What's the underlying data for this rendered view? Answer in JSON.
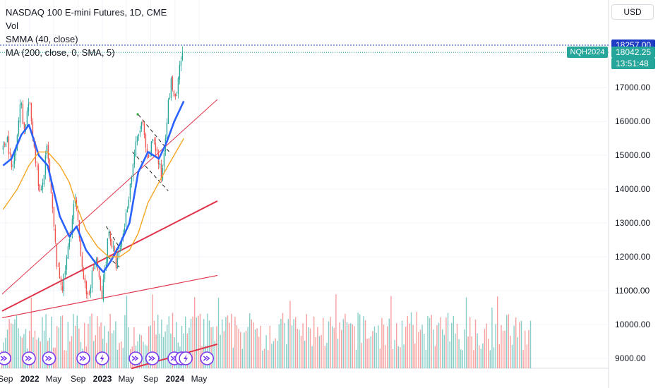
{
  "legend": {
    "title": "NASDAQ 100 E-mini Futures, 1D, CME",
    "vol": "Vol",
    "smma": "SMMA (40, close)",
    "ma": "MA (200, close, 0, SMA, 5)"
  },
  "price_scale": {
    "currency": "USD",
    "level_label": "18257.00",
    "symbol_tag": "NQH2024",
    "last_price": "18042.25",
    "countdown": "13:51:48"
  },
  "colors": {
    "up": "#26a69a",
    "down": "#ef5350",
    "smma": "#2962ff",
    "ma": "#f5a623",
    "trendline": "#e0344b",
    "level": "#1f3cc4",
    "event": "#7c3aed"
  },
  "chart_data": {
    "type": "line",
    "title": "NASDAQ 100 E-mini Futures, 1D, CME",
    "x_ticks": [
      "Sep",
      "2022",
      "May",
      "Sep",
      "2023",
      "May",
      "Sep",
      "2024",
      "May"
    ],
    "y_ticks": [
      9000,
      10000,
      11000,
      12000,
      13000,
      14000,
      15000,
      16000,
      17000
    ],
    "ylim": [
      8700,
      18950
    ],
    "horizontal_level": 18257,
    "last_price": 18042.25,
    "price_path": [
      {
        "date": "2021-08-20",
        "price": 15150
      },
      {
        "date": "2021-09-07",
        "price": 15650
      },
      {
        "date": "2021-10-04",
        "price": 14500
      },
      {
        "date": "2021-11-19",
        "price": 16650
      },
      {
        "date": "2021-12-03",
        "price": 15700
      },
      {
        "date": "2021-12-28",
        "price": 16600
      },
      {
        "date": "2022-02-24",
        "price": 13700
      },
      {
        "date": "2022-03-29",
        "price": 15200
      },
      {
        "date": "2022-05-20",
        "price": 11600
      },
      {
        "date": "2022-06-16",
        "price": 11100
      },
      {
        "date": "2022-08-16",
        "price": 13700
      },
      {
        "date": "2022-10-13",
        "price": 10700
      },
      {
        "date": "2022-11-30",
        "price": 12000
      },
      {
        "date": "2022-12-28",
        "price": 10700
      },
      {
        "date": "2023-02-02",
        "price": 12800
      },
      {
        "date": "2023-03-13",
        "price": 11700
      },
      {
        "date": "2023-04-24",
        "price": 13000
      },
      {
        "date": "2023-06-15",
        "price": 15200
      },
      {
        "date": "2023-07-19",
        "price": 16000
      },
      {
        "date": "2023-08-18",
        "price": 14700
      },
      {
        "date": "2023-09-14",
        "price": 15600
      },
      {
        "date": "2023-10-26",
        "price": 14300
      },
      {
        "date": "2023-11-20",
        "price": 16100
      },
      {
        "date": "2023-12-14",
        "price": 17200
      },
      {
        "date": "2024-01-05",
        "price": 16500
      },
      {
        "date": "2024-01-30",
        "price": 17800
      },
      {
        "date": "2024-02-14",
        "price": 18040
      }
    ],
    "series": [
      {
        "name": "SMMA (40, close)",
        "points": [
          {
            "date": "2021-08-20",
            "value": 14700
          },
          {
            "date": "2021-10-01",
            "value": 14900
          },
          {
            "date": "2021-11-19",
            "value": 15600
          },
          {
            "date": "2021-12-28",
            "value": 15900
          },
          {
            "date": "2022-02-15",
            "value": 15000
          },
          {
            "date": "2022-04-01",
            "value": 14700
          },
          {
            "date": "2022-06-01",
            "value": 13200
          },
          {
            "date": "2022-07-19",
            "value": 12600
          },
          {
            "date": "2022-08-24",
            "value": 12900
          },
          {
            "date": "2022-10-11",
            "value": 12200
          },
          {
            "date": "2022-11-30",
            "value": 11800
          },
          {
            "date": "2023-01-06",
            "value": 11550
          },
          {
            "date": "2023-02-15",
            "value": 11900
          },
          {
            "date": "2023-04-01",
            "value": 12400
          },
          {
            "date": "2023-05-17",
            "value": 13000
          },
          {
            "date": "2023-06-30",
            "value": 14500
          },
          {
            "date": "2023-08-18",
            "value": 15100
          },
          {
            "date": "2023-10-12",
            "value": 14900
          },
          {
            "date": "2023-11-21",
            "value": 15400
          },
          {
            "date": "2023-12-28",
            "value": 16000
          },
          {
            "date": "2024-02-14",
            "value": 16600
          }
        ]
      },
      {
        "name": "MA (200, close, 0, SMA, 5)",
        "points": [
          {
            "date": "2021-08-20",
            "value": 13400
          },
          {
            "date": "2021-10-30",
            "value": 14000
          },
          {
            "date": "2021-12-28",
            "value": 14700
          },
          {
            "date": "2022-02-15",
            "value": 15100
          },
          {
            "date": "2022-04-01",
            "value": 15100
          },
          {
            "date": "2022-06-01",
            "value": 14700
          },
          {
            "date": "2022-07-19",
            "value": 14200
          },
          {
            "date": "2022-09-01",
            "value": 13400
          },
          {
            "date": "2022-10-11",
            "value": 12800
          },
          {
            "date": "2022-12-07",
            "value": 12300
          },
          {
            "date": "2023-02-02",
            "value": 12000
          },
          {
            "date": "2023-03-29",
            "value": 12000
          },
          {
            "date": "2023-05-17",
            "value": 12200
          },
          {
            "date": "2023-06-30",
            "value": 12700
          },
          {
            "date": "2023-08-18",
            "value": 13600
          },
          {
            "date": "2023-10-12",
            "value": 14200
          },
          {
            "date": "2023-11-28",
            "value": 14700
          },
          {
            "date": "2024-01-06",
            "value": 15100
          },
          {
            "date": "2024-02-14",
            "value": 15500
          }
        ]
      }
    ],
    "trendlines": [
      {
        "from": {
          "date": "2021-08-15",
          "value": 10900
        },
        "to": {
          "date": "2024-08-01",
          "value": 16650
        },
        "style": "thin"
      },
      {
        "from": {
          "date": "2021-08-15",
          "value": 10400
        },
        "to": {
          "date": "2024-08-01",
          "value": 13650
        },
        "style": "bold"
      },
      {
        "from": {
          "date": "2021-08-15",
          "value": 10200
        },
        "to": {
          "date": "2024-08-01",
          "value": 11450
        },
        "style": "medium"
      },
      {
        "from": {
          "date": "2023-05-27",
          "value": 8700
        },
        "to": {
          "date": "2024-08-01",
          "value": 9420
        },
        "style": "bold"
      },
      {
        "from": {
          "date": "2023-07-01",
          "value": 16200
        },
        "to": {
          "date": "2023-12-10",
          "value": 15050
        },
        "style": "dashed"
      },
      {
        "from": {
          "date": "2023-06-01",
          "value": 15100
        },
        "to": {
          "date": "2023-11-28",
          "value": 13950
        },
        "style": "dashed"
      },
      {
        "from": {
          "date": "2023-01-20",
          "value": 12900
        },
        "to": {
          "date": "2023-03-31",
          "value": 12250
        },
        "style": "dashed"
      },
      {
        "from": {
          "date": "2023-01-29",
          "value": 12000
        },
        "to": {
          "date": "2023-03-27",
          "value": 11700
        },
        "style": "dashed"
      }
    ],
    "event_markers": [
      {
        "date": "2021-08-26",
        "kind": "arrow"
      },
      {
        "date": "2021-12-28",
        "kind": "arrow"
      },
      {
        "date": "2022-04-08",
        "kind": "arrow"
      },
      {
        "date": "2022-09-27",
        "kind": "arrow"
      },
      {
        "date": "2022-12-31",
        "kind": "lightning"
      },
      {
        "date": "2023-06-17",
        "kind": "arrow"
      },
      {
        "date": "2023-09-09",
        "kind": "arrow"
      },
      {
        "date": "2023-12-29",
        "kind": "arrow"
      },
      {
        "date": "2024-02-04",
        "kind": "lightning"
      },
      {
        "date": "2024-02-24",
        "kind": "lightning"
      },
      {
        "date": "2024-06-10",
        "kind": "arrow"
      }
    ]
  }
}
